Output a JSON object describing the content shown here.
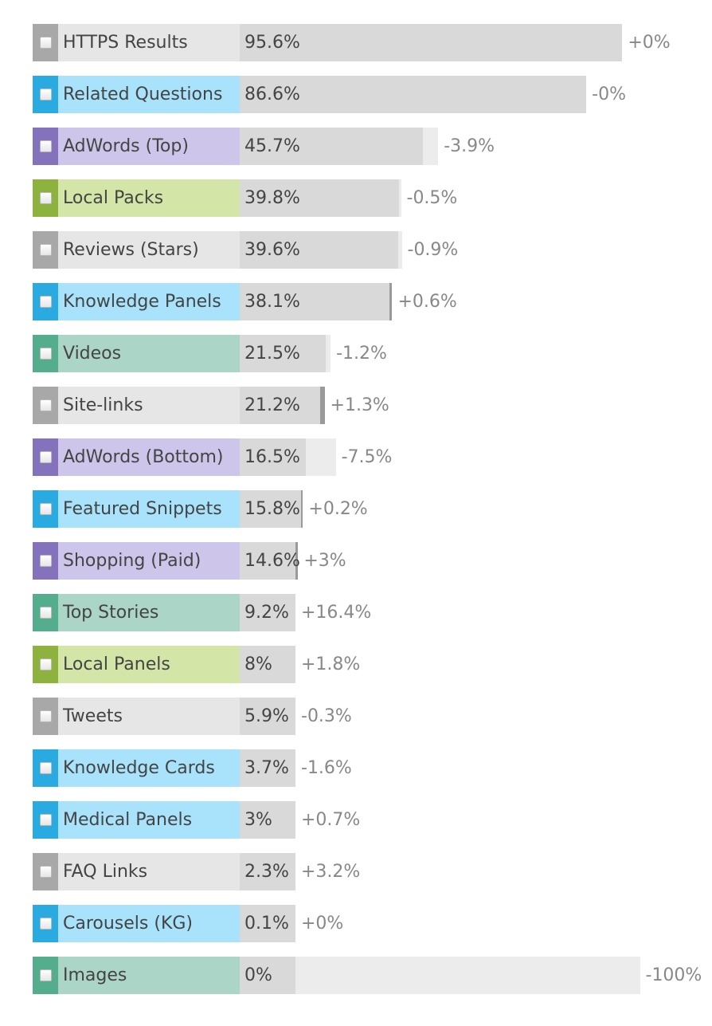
{
  "colors": {
    "gray": {
      "swatch": "#a8a8a8",
      "label": "#e6e6e6"
    },
    "blue": {
      "swatch": "#29abe2",
      "label": "#a8e3fb"
    },
    "purple": {
      "swatch": "#8472bd",
      "label": "#cdc6ea"
    },
    "green": {
      "swatch": "#8db33e",
      "label": "#d4e5a8"
    },
    "teal": {
      "swatch": "#54ad8c",
      "label": "#abd5c6"
    }
  },
  "chart_data": {
    "type": "bar",
    "orientation": "horizontal",
    "xlim": [
      0,
      100
    ],
    "unit": "%",
    "grid": false,
    "legend": "none",
    "rows": [
      {
        "name": "HTTPS Results",
        "value": 95.6,
        "value_label": "95.6%",
        "change": 0.0,
        "change_label": "+0%",
        "group": "gray"
      },
      {
        "name": "Related Questions",
        "value": 86.6,
        "value_label": "86.6%",
        "change": -0.0,
        "change_label": "-0%",
        "group": "blue"
      },
      {
        "name": "AdWords (Top)",
        "value": 45.7,
        "value_label": "45.7%",
        "change": -3.9,
        "change_label": "-3.9%",
        "group": "purple"
      },
      {
        "name": "Local Packs",
        "value": 39.8,
        "value_label": "39.8%",
        "change": -0.5,
        "change_label": "-0.5%",
        "group": "green"
      },
      {
        "name": "Reviews (Stars)",
        "value": 39.6,
        "value_label": "39.6%",
        "change": -0.9,
        "change_label": "-0.9%",
        "group": "gray"
      },
      {
        "name": "Knowledge Panels",
        "value": 38.1,
        "value_label": "38.1%",
        "change": 0.6,
        "change_label": "+0.6%",
        "group": "blue"
      },
      {
        "name": "Videos",
        "value": 21.5,
        "value_label": "21.5%",
        "change": -1.2,
        "change_label": "-1.2%",
        "group": "teal"
      },
      {
        "name": "Site-links",
        "value": 21.2,
        "value_label": "21.2%",
        "change": 1.3,
        "change_label": "+1.3%",
        "group": "gray"
      },
      {
        "name": "AdWords (Bottom)",
        "value": 16.5,
        "value_label": "16.5%",
        "change": -7.5,
        "change_label": "-7.5%",
        "group": "purple"
      },
      {
        "name": "Featured Snippets",
        "value": 15.8,
        "value_label": "15.8%",
        "change": 0.2,
        "change_label": "+0.2%",
        "group": "blue"
      },
      {
        "name": "Shopping (Paid)",
        "value": 14.6,
        "value_label": "14.6%",
        "change": 3.0,
        "change_label": "+3%",
        "group": "purple"
      },
      {
        "name": "Top Stories",
        "value": 9.2,
        "value_label": "9.2%",
        "change": 16.4,
        "change_label": "+16.4%",
        "group": "teal"
      },
      {
        "name": "Local Panels",
        "value": 8.0,
        "value_label": "8%",
        "change": 1.8,
        "change_label": "+1.8%",
        "group": "green"
      },
      {
        "name": "Tweets",
        "value": 5.9,
        "value_label": "5.9%",
        "change": -0.3,
        "change_label": "-0.3%",
        "group": "gray"
      },
      {
        "name": "Knowledge Cards",
        "value": 3.7,
        "value_label": "3.7%",
        "change": -1.6,
        "change_label": "-1.6%",
        "group": "blue"
      },
      {
        "name": "Medical Panels",
        "value": 3.0,
        "value_label": "3%",
        "change": 0.7,
        "change_label": "+0.7%",
        "group": "blue"
      },
      {
        "name": "FAQ Links",
        "value": 2.3,
        "value_label": "2.3%",
        "change": 3.2,
        "change_label": "+3.2%",
        "group": "gray"
      },
      {
        "name": "Carousels (KG)",
        "value": 0.1,
        "value_label": "0.1%",
        "change": 0.0,
        "change_label": "+0%",
        "group": "blue"
      },
      {
        "name": "Images",
        "value": 0.0,
        "value_label": "0%",
        "change": -100,
        "change_label": "-100%",
        "group": "teal"
      }
    ]
  }
}
